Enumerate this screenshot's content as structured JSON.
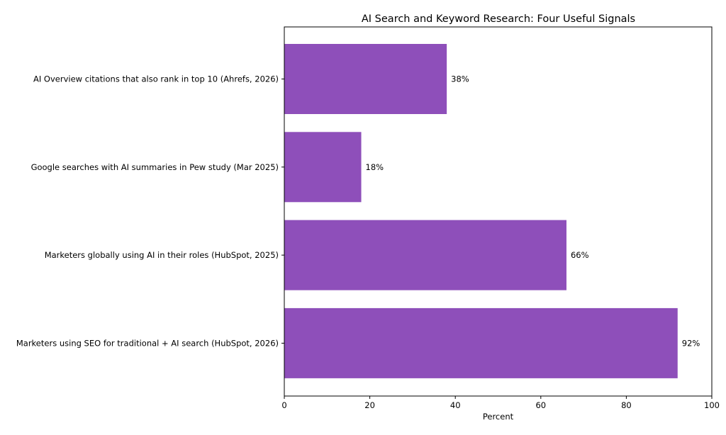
{
  "chart_data": {
    "type": "bar",
    "orientation": "horizontal",
    "title": "AI Search and Keyword Research: Four Useful Signals",
    "xlabel": "Percent",
    "ylabel": "",
    "xlim": [
      0,
      100
    ],
    "xticks": [
      0,
      20,
      40,
      60,
      80,
      100
    ],
    "grid": false,
    "bar_color": "#8e4fba",
    "categories": [
      "AI Overview citations that also rank in top 10 (Ahrefs, 2026)",
      "Google searches with AI summaries in Pew study (Mar 2025)",
      "Marketers globally using AI in their roles (HubSpot, 2025)",
      "Marketers using SEO for traditional + AI search (HubSpot, 2026)"
    ],
    "values": [
      38,
      18,
      66,
      92
    ],
    "data_labels": [
      "38%",
      "18%",
      "66%",
      "92%"
    ]
  }
}
